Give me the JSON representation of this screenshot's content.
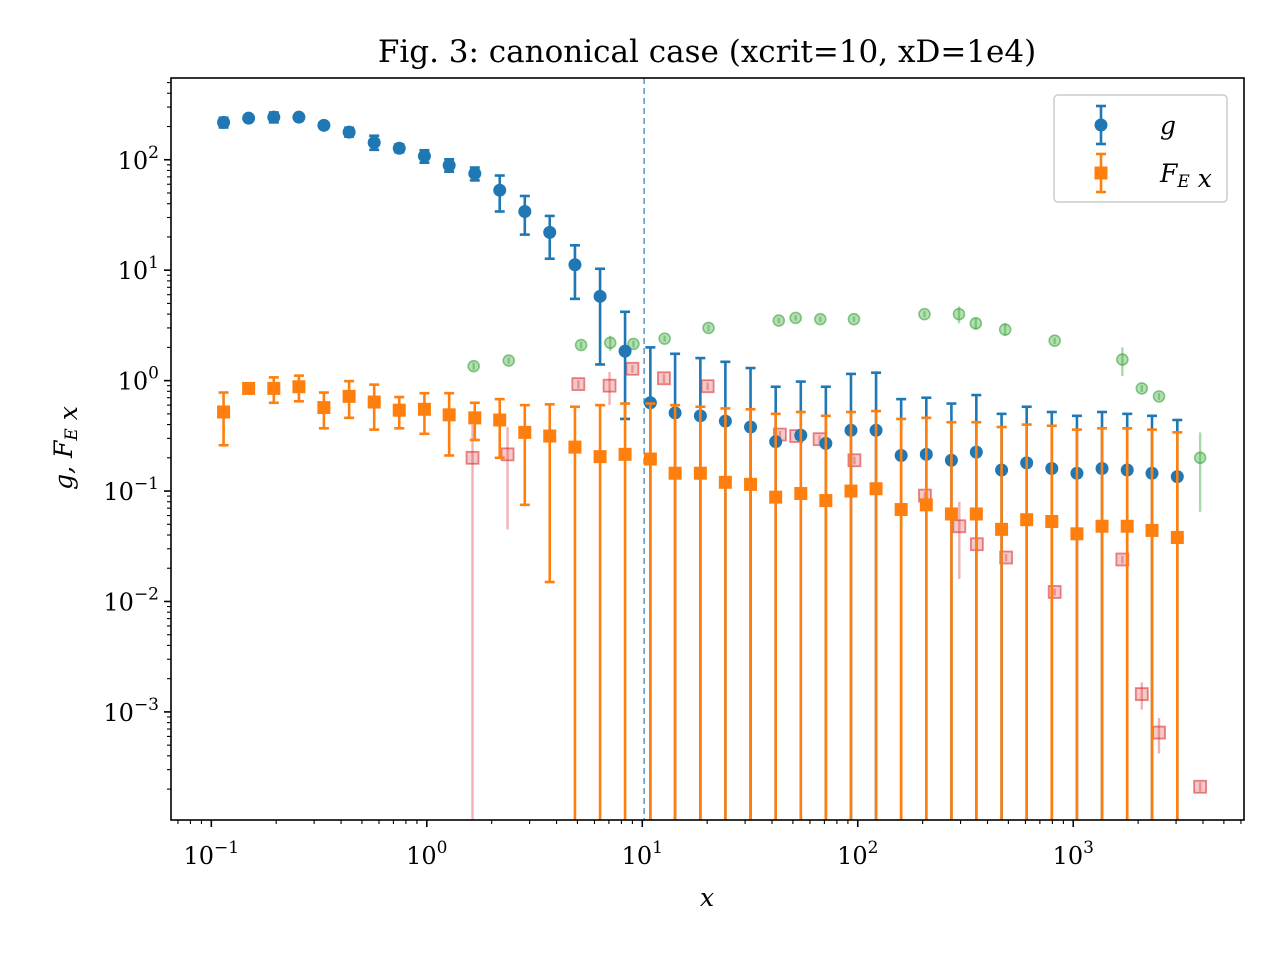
{
  "chart_data": {
    "type": "scatter",
    "title": "Fig. 3: canonical case (xcrit=10, xD=1e4)",
    "xlabel": "x",
    "ylabel": "g, F_E x",
    "x_scale": "log",
    "y_scale": "log",
    "xlim": [
      0.065,
      6200
    ],
    "ylim": [
      0.000105,
      550
    ],
    "x_ticks": [
      {
        "value": 0.1,
        "label": "10^-1"
      },
      {
        "value": 1,
        "label": "10^0"
      },
      {
        "value": 10,
        "label": "10^1"
      },
      {
        "value": 100,
        "label": "10^2"
      },
      {
        "value": 1000,
        "label": "10^3"
      }
    ],
    "y_ticks": [
      {
        "value": 0.001,
        "label": "10^-3"
      },
      {
        "value": 0.01,
        "label": "10^-2"
      },
      {
        "value": 0.1,
        "label": "10^-1"
      },
      {
        "value": 1,
        "label": "10^0"
      },
      {
        "value": 10,
        "label": "10^1"
      },
      {
        "value": 100,
        "label": "10^2"
      }
    ],
    "vertical_reference_line": {
      "x": 10.2,
      "style": "dashed",
      "color": "#1f77b4"
    },
    "legend": {
      "placement": "top-right"
    },
    "colors": {
      "g": "#1f77b4",
      "fex": "#ff7f0e",
      "green": "#2ca02c",
      "pink": "#d62728"
    },
    "series": [
      {
        "name": "g",
        "legend_label": "g",
        "marker": "circle",
        "color": "#1f77b4",
        "points": [
          {
            "x": 0.114,
            "y": 218,
            "lo": 196,
            "hi": 240
          },
          {
            "x": 0.149,
            "y": 238,
            "lo": 225,
            "hi": 252
          },
          {
            "x": 0.195,
            "y": 243,
            "lo": 218,
            "hi": 268
          },
          {
            "x": 0.255,
            "y": 243,
            "lo": 228,
            "hi": 258
          },
          {
            "x": 0.333,
            "y": 205,
            "lo": 193,
            "hi": 218
          },
          {
            "x": 0.436,
            "y": 178,
            "lo": 162,
            "hi": 195
          },
          {
            "x": 0.57,
            "y": 143,
            "lo": 123,
            "hi": 165
          },
          {
            "x": 0.745,
            "y": 127,
            "lo": 117,
            "hi": 138
          },
          {
            "x": 0.975,
            "y": 108,
            "lo": 94,
            "hi": 122
          },
          {
            "x": 1.27,
            "y": 89,
            "lo": 78,
            "hi": 101
          },
          {
            "x": 1.67,
            "y": 75,
            "lo": 65,
            "hi": 85
          },
          {
            "x": 2.18,
            "y": 53,
            "lo": 34,
            "hi": 72
          },
          {
            "x": 2.85,
            "y": 34,
            "lo": 21,
            "hi": 47
          },
          {
            "x": 3.72,
            "y": 22,
            "lo": 12.7,
            "hi": 31
          },
          {
            "x": 4.87,
            "y": 11.2,
            "lo": 5.5,
            "hi": 16.8
          },
          {
            "x": 6.37,
            "y": 5.8,
            "lo": 1.4,
            "hi": 10.3
          },
          {
            "x": 8.32,
            "y": 1.85,
            "lo": 0.45,
            "hi": 4.2
          },
          {
            "x": 10.9,
            "y": 0.63,
            "lo": 1e-05,
            "hi": 2.0
          },
          {
            "x": 14.2,
            "y": 0.51,
            "lo": 1e-05,
            "hi": 1.75
          },
          {
            "x": 18.6,
            "y": 0.48,
            "lo": 1e-05,
            "hi": 1.6
          },
          {
            "x": 24.3,
            "y": 0.43,
            "lo": 1e-05,
            "hi": 1.48
          },
          {
            "x": 31.8,
            "y": 0.38,
            "lo": 1e-05,
            "hi": 1.3
          },
          {
            "x": 41.6,
            "y": 0.28,
            "lo": 1e-05,
            "hi": 0.88
          },
          {
            "x": 54.4,
            "y": 0.32,
            "lo": 1e-05,
            "hi": 0.98
          },
          {
            "x": 71.1,
            "y": 0.27,
            "lo": 1e-05,
            "hi": 0.88
          },
          {
            "x": 93,
            "y": 0.355,
            "lo": 1e-05,
            "hi": 1.15
          },
          {
            "x": 121.6,
            "y": 0.355,
            "lo": 1e-05,
            "hi": 1.18
          },
          {
            "x": 159,
            "y": 0.21,
            "lo": 1e-05,
            "hi": 0.68
          },
          {
            "x": 208,
            "y": 0.215,
            "lo": 1e-05,
            "hi": 0.7
          },
          {
            "x": 272,
            "y": 0.19,
            "lo": 1e-05,
            "hi": 0.62
          },
          {
            "x": 355,
            "y": 0.225,
            "lo": 1e-05,
            "hi": 0.74
          },
          {
            "x": 465,
            "y": 0.155,
            "lo": 1e-05,
            "hi": 0.5
          },
          {
            "x": 608,
            "y": 0.18,
            "lo": 1e-05,
            "hi": 0.58
          },
          {
            "x": 795,
            "y": 0.16,
            "lo": 1e-05,
            "hi": 0.52
          },
          {
            "x": 1040,
            "y": 0.145,
            "lo": 1e-05,
            "hi": 0.48
          },
          {
            "x": 1360,
            "y": 0.16,
            "lo": 1e-05,
            "hi": 0.52
          },
          {
            "x": 1780,
            "y": 0.155,
            "lo": 1e-05,
            "hi": 0.5
          },
          {
            "x": 2320,
            "y": 0.145,
            "lo": 1e-05,
            "hi": 0.48
          },
          {
            "x": 3040,
            "y": 0.135,
            "lo": 1e-05,
            "hi": 0.44
          }
        ]
      },
      {
        "name": "F_E x",
        "legend_label": "F_E x",
        "marker": "square",
        "color": "#ff7f0e",
        "points": [
          {
            "x": 0.114,
            "y": 0.52,
            "lo": 0.26,
            "hi": 0.78
          },
          {
            "x": 0.149,
            "y": 0.85,
            "lo": 0.77,
            "hi": 0.93
          },
          {
            "x": 0.195,
            "y": 0.85,
            "lo": 0.63,
            "hi": 1.07
          },
          {
            "x": 0.255,
            "y": 0.88,
            "lo": 0.65,
            "hi": 1.11
          },
          {
            "x": 0.333,
            "y": 0.57,
            "lo": 0.37,
            "hi": 0.78
          },
          {
            "x": 0.436,
            "y": 0.72,
            "lo": 0.46,
            "hi": 0.99
          },
          {
            "x": 0.57,
            "y": 0.64,
            "lo": 0.36,
            "hi": 0.92
          },
          {
            "x": 0.745,
            "y": 0.54,
            "lo": 0.37,
            "hi": 0.71
          },
          {
            "x": 0.975,
            "y": 0.55,
            "lo": 0.33,
            "hi": 0.77
          },
          {
            "x": 1.27,
            "y": 0.49,
            "lo": 0.21,
            "hi": 0.77
          },
          {
            "x": 1.67,
            "y": 0.46,
            "lo": 0.29,
            "hi": 0.63
          },
          {
            "x": 2.18,
            "y": 0.44,
            "lo": 0.2,
            "hi": 0.68
          },
          {
            "x": 2.85,
            "y": 0.34,
            "lo": 0.075,
            "hi": 0.6
          },
          {
            "x": 3.72,
            "y": 0.315,
            "lo": 0.015,
            "hi": 0.61
          },
          {
            "x": 4.87,
            "y": 0.25,
            "lo": 1e-05,
            "hi": 0.58
          },
          {
            "x": 6.37,
            "y": 0.205,
            "lo": 1e-05,
            "hi": 0.6
          },
          {
            "x": 8.32,
            "y": 0.215,
            "lo": 1e-05,
            "hi": 0.62
          },
          {
            "x": 10.9,
            "y": 0.195,
            "lo": 1e-05,
            "hi": 0.62
          },
          {
            "x": 14.2,
            "y": 0.145,
            "lo": 1e-05,
            "hi": 0.6
          },
          {
            "x": 18.6,
            "y": 0.145,
            "lo": 1e-05,
            "hi": 0.58
          },
          {
            "x": 24.3,
            "y": 0.12,
            "lo": 1e-05,
            "hi": 0.56
          },
          {
            "x": 31.8,
            "y": 0.115,
            "lo": 1e-05,
            "hi": 0.55
          },
          {
            "x": 41.6,
            "y": 0.088,
            "lo": 1e-05,
            "hi": 0.5
          },
          {
            "x": 54.4,
            "y": 0.095,
            "lo": 1e-05,
            "hi": 0.52
          },
          {
            "x": 71.1,
            "y": 0.082,
            "lo": 1e-05,
            "hi": 0.48
          },
          {
            "x": 93,
            "y": 0.1,
            "lo": 1e-05,
            "hi": 0.52
          },
          {
            "x": 121.6,
            "y": 0.105,
            "lo": 1e-05,
            "hi": 0.53
          },
          {
            "x": 159,
            "y": 0.068,
            "lo": 1e-05,
            "hi": 0.45
          },
          {
            "x": 208,
            "y": 0.075,
            "lo": 1e-05,
            "hi": 0.46
          },
          {
            "x": 272,
            "y": 0.062,
            "lo": 1e-05,
            "hi": 0.42
          },
          {
            "x": 355,
            "y": 0.062,
            "lo": 1e-05,
            "hi": 0.42
          },
          {
            "x": 465,
            "y": 0.045,
            "lo": 1e-05,
            "hi": 0.38
          },
          {
            "x": 608,
            "y": 0.055,
            "lo": 1e-05,
            "hi": 0.4
          },
          {
            "x": 795,
            "y": 0.053,
            "lo": 1e-05,
            "hi": 0.39
          },
          {
            "x": 1040,
            "y": 0.041,
            "lo": 1e-05,
            "hi": 0.36
          },
          {
            "x": 1360,
            "y": 0.048,
            "lo": 1e-05,
            "hi": 0.37
          },
          {
            "x": 1780,
            "y": 0.048,
            "lo": 1e-05,
            "hi": 0.37
          },
          {
            "x": 2320,
            "y": 0.044,
            "lo": 1e-05,
            "hi": 0.36
          },
          {
            "x": 3040,
            "y": 0.038,
            "lo": 1e-05,
            "hi": 0.34
          }
        ]
      },
      {
        "marker": "circle",
        "color": "#2ca02c",
        "alpha": 0.4,
        "points": [
          {
            "x": 1.65,
            "y": 1.35,
            "lo": 1.25,
            "hi": 1.45
          },
          {
            "x": 2.4,
            "y": 1.52,
            "lo": 1.42,
            "hi": 1.62
          },
          {
            "x": 5.2,
            "y": 2.1,
            "lo": 1.95,
            "hi": 2.25
          },
          {
            "x": 7.1,
            "y": 2.2,
            "lo": 1.85,
            "hi": 2.55
          },
          {
            "x": 9.1,
            "y": 2.15,
            "lo": 2.0,
            "hi": 2.3
          },
          {
            "x": 12.7,
            "y": 2.4,
            "lo": 2.25,
            "hi": 2.55
          },
          {
            "x": 20.3,
            "y": 3.0,
            "lo": 2.8,
            "hi": 3.2
          },
          {
            "x": 43,
            "y": 3.5,
            "lo": 3.3,
            "hi": 3.7
          },
          {
            "x": 51.5,
            "y": 3.7,
            "lo": 3.5,
            "hi": 3.9
          },
          {
            "x": 67,
            "y": 3.6,
            "lo": 3.4,
            "hi": 3.8
          },
          {
            "x": 96,
            "y": 3.6,
            "lo": 3.4,
            "hi": 3.8
          },
          {
            "x": 204,
            "y": 4.0,
            "lo": 3.75,
            "hi": 4.25
          },
          {
            "x": 295,
            "y": 4.0,
            "lo": 3.3,
            "hi": 4.7
          },
          {
            "x": 353,
            "y": 3.3,
            "lo": 2.9,
            "hi": 3.7
          },
          {
            "x": 483,
            "y": 2.9,
            "lo": 2.55,
            "hi": 3.3
          },
          {
            "x": 820,
            "y": 2.3,
            "lo": 2.15,
            "hi": 2.45
          },
          {
            "x": 1690,
            "y": 1.55,
            "lo": 1.1,
            "hi": 2.0
          },
          {
            "x": 2080,
            "y": 0.85,
            "lo": 0.79,
            "hi": 0.91
          },
          {
            "x": 2500,
            "y": 0.72,
            "lo": 0.67,
            "hi": 0.77
          },
          {
            "x": 3880,
            "y": 0.2,
            "lo": 0.065,
            "hi": 0.34
          }
        ]
      },
      {
        "marker": "square",
        "color": "#d62728",
        "alpha": 0.35,
        "points": [
          {
            "x": 1.63,
            "y": 0.2,
            "lo": 1e-05,
            "hi": 0.4
          },
          {
            "x": 2.37,
            "y": 0.215,
            "lo": 0.045,
            "hi": 0.38
          },
          {
            "x": 5.05,
            "y": 0.93,
            "lo": 0.85,
            "hi": 1.01
          },
          {
            "x": 7.05,
            "y": 0.9,
            "lo": 0.6,
            "hi": 1.2
          },
          {
            "x": 9.0,
            "y": 1.28,
            "lo": 1.18,
            "hi": 1.38
          },
          {
            "x": 12.6,
            "y": 1.05,
            "lo": 0.95,
            "hi": 1.15
          },
          {
            "x": 20.1,
            "y": 0.89,
            "lo": 0.82,
            "hi": 0.96
          },
          {
            "x": 43.5,
            "y": 0.325,
            "lo": 0.3,
            "hi": 0.35
          },
          {
            "x": 51.8,
            "y": 0.315,
            "lo": 0.29,
            "hi": 0.34
          },
          {
            "x": 66.5,
            "y": 0.295,
            "lo": 0.27,
            "hi": 0.32
          },
          {
            "x": 96.5,
            "y": 0.19,
            "lo": 0.175,
            "hi": 0.205
          },
          {
            "x": 205,
            "y": 0.091,
            "lo": 0.084,
            "hi": 0.098
          },
          {
            "x": 296,
            "y": 0.048,
            "lo": 0.016,
            "hi": 0.08
          },
          {
            "x": 357,
            "y": 0.033,
            "lo": 0.028,
            "hi": 0.038
          },
          {
            "x": 488,
            "y": 0.025,
            "lo": 0.023,
            "hi": 0.027
          },
          {
            "x": 820,
            "y": 0.0122,
            "lo": 0.0113,
            "hi": 0.0131
          },
          {
            "x": 1690,
            "y": 0.024,
            "lo": 0.022,
            "hi": 0.026
          },
          {
            "x": 2080,
            "y": 0.00145,
            "lo": 0.00105,
            "hi": 0.00185
          },
          {
            "x": 2500,
            "y": 0.00065,
            "lo": 0.00042,
            "hi": 0.00088
          },
          {
            "x": 3880,
            "y": 0.00021,
            "lo": 0.00019,
            "hi": 0.00023
          }
        ]
      }
    ]
  }
}
